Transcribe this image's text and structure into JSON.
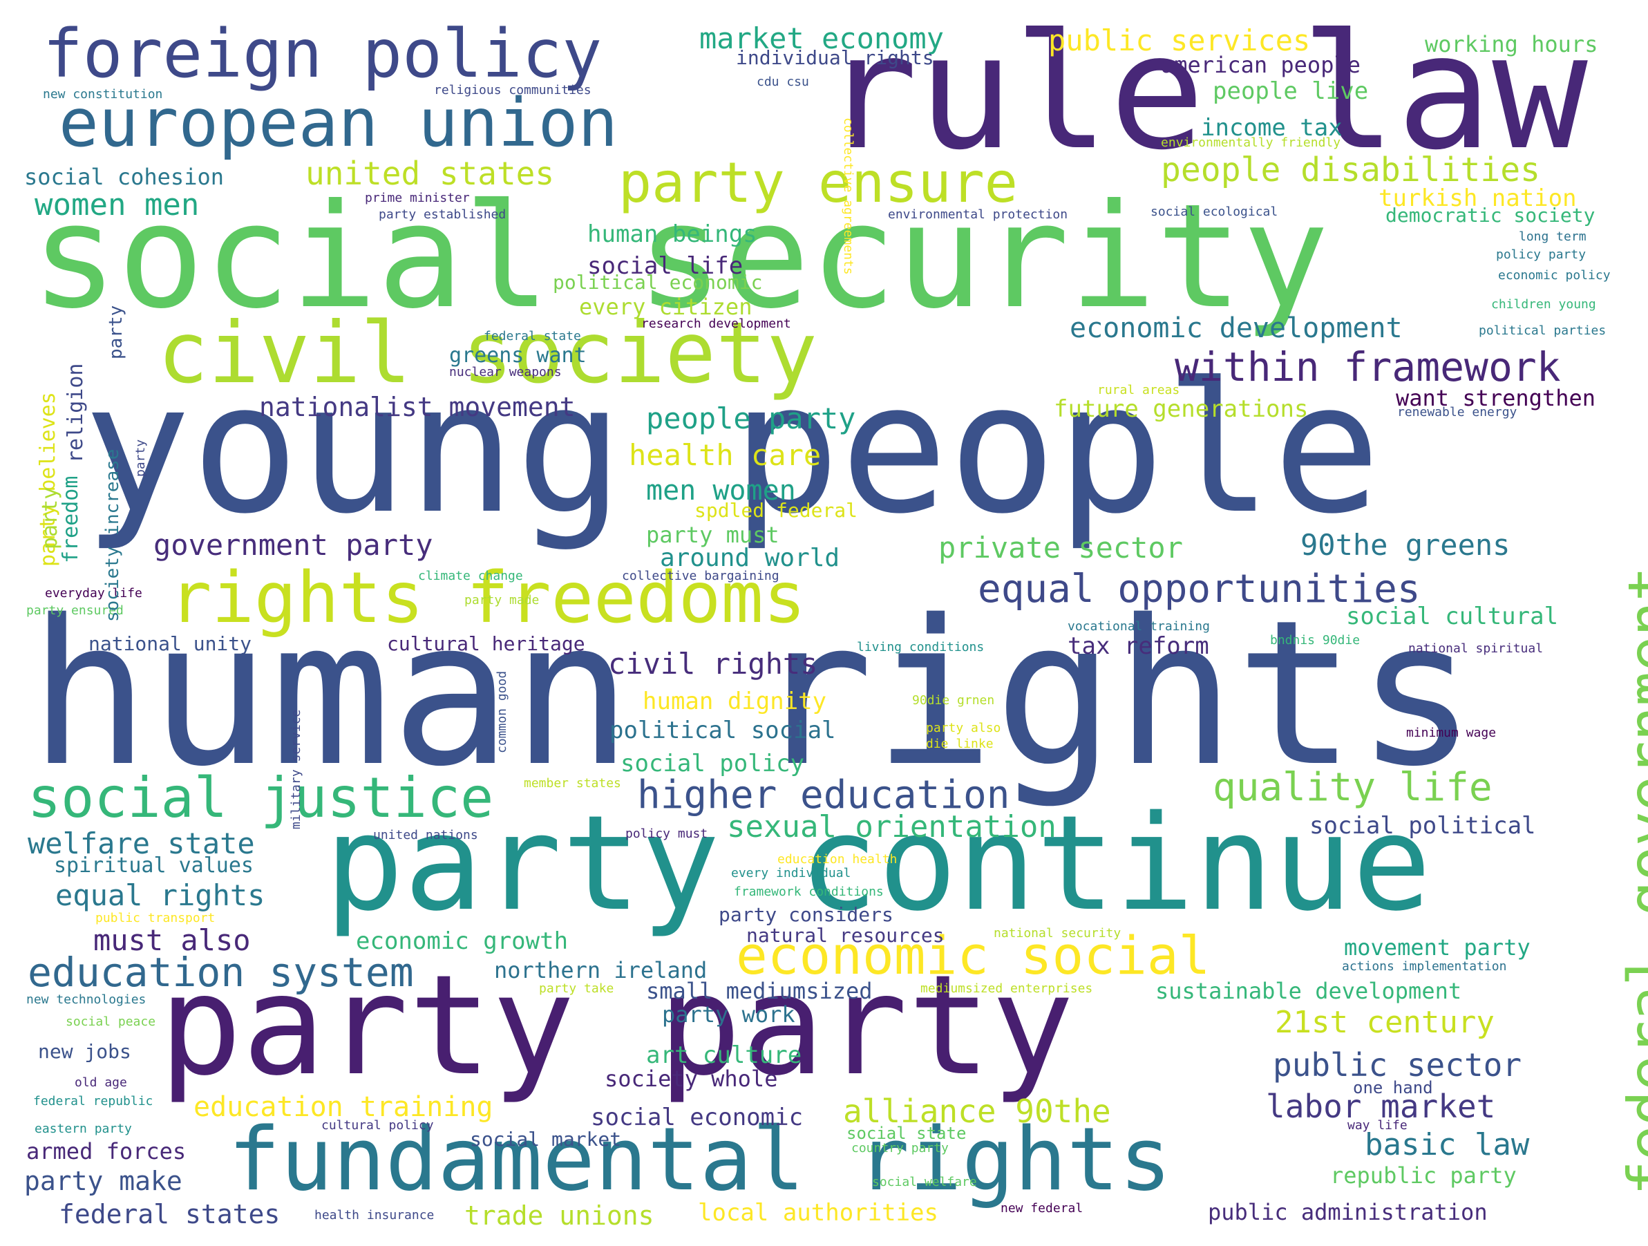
{
  "cloud": {
    "words": [
      {
        "text": "human rights",
        "color": "#3b528b"
      },
      {
        "text": "young people",
        "color": "#3b528b"
      },
      {
        "text": "social security",
        "color": "#5ec962"
      },
      {
        "text": "rule law",
        "color": "#482878"
      },
      {
        "text": "party continue",
        "color": "#21918c"
      },
      {
        "text": "party party",
        "color": "#481f70"
      },
      {
        "text": "fundamental rights",
        "color": "#2a788e"
      },
      {
        "text": "civil society",
        "color": "#addc30"
      },
      {
        "text": "rights freedoms",
        "color": "#c8e020"
      },
      {
        "text": "foreign policy",
        "color": "#3e4989"
      },
      {
        "text": "european union",
        "color": "#31688e"
      },
      {
        "text": "federal government",
        "color": "#7ad151"
      },
      {
        "text": "party ensure",
        "color": "#bddf26"
      },
      {
        "text": "social justice",
        "color": "#35b779"
      },
      {
        "text": "economic social",
        "color": "#fde725"
      },
      {
        "text": "education system",
        "color": "#31688e"
      },
      {
        "text": "equal opportunities",
        "color": "#3e4989"
      },
      {
        "text": "higher education",
        "color": "#3b528b"
      },
      {
        "text": "within framework",
        "color": "#482878"
      },
      {
        "text": "quality life",
        "color": "#7ad151"
      },
      {
        "text": "market economy",
        "color": "#22a884"
      },
      {
        "text": "public services",
        "color": "#fde725"
      },
      {
        "text": "working hours",
        "color": "#5ec962"
      },
      {
        "text": "individual rights",
        "color": "#3e4989"
      },
      {
        "text": "american people",
        "color": "#482878"
      },
      {
        "text": "people live",
        "color": "#5ec962"
      },
      {
        "text": "income tax",
        "color": "#21918c"
      },
      {
        "text": "united states",
        "color": "#bddf26"
      },
      {
        "text": "people disabilities",
        "color": "#b5de2b"
      },
      {
        "text": "social cohesion",
        "color": "#2a788e"
      },
      {
        "text": "women men",
        "color": "#22a884"
      },
      {
        "text": "turkish nation",
        "color": "#fde725"
      },
      {
        "text": "democratic society",
        "color": "#35b779"
      },
      {
        "text": "human beings",
        "color": "#35b779"
      },
      {
        "text": "social life",
        "color": "#482878"
      },
      {
        "text": "political economic",
        "color": "#7ad151"
      },
      {
        "text": "every citizen",
        "color": "#addc30"
      },
      {
        "text": "economic development",
        "color": "#2a788e"
      },
      {
        "text": "greens want",
        "color": "#2a788e"
      },
      {
        "text": "nationalist movement",
        "color": "#443983"
      },
      {
        "text": "future generations",
        "color": "#b5de2b"
      },
      {
        "text": "want strengthen",
        "color": "#440154"
      },
      {
        "text": "people party",
        "color": "#1fa187"
      },
      {
        "text": "health care",
        "color": "#dde318"
      },
      {
        "text": "men women",
        "color": "#1fa187"
      },
      {
        "text": "spdled federal",
        "color": "#dde318"
      },
      {
        "text": "party must",
        "color": "#5ec962"
      },
      {
        "text": "government party",
        "color": "#472d7b"
      },
      {
        "text": "private sector",
        "color": "#5ec962"
      },
      {
        "text": "90the greens",
        "color": "#2a788e"
      },
      {
        "text": "around world",
        "color": "#21918c"
      },
      {
        "text": "social cultural",
        "color": "#35b779"
      },
      {
        "text": "national unity",
        "color": "#3b528b"
      },
      {
        "text": "cultural heritage",
        "color": "#482878"
      },
      {
        "text": "tax reform",
        "color": "#472d7b"
      },
      {
        "text": "civil rights",
        "color": "#472d7b"
      },
      {
        "text": "human dignity",
        "color": "#fde725"
      },
      {
        "text": "political social",
        "color": "#2c728e"
      },
      {
        "text": "social policy",
        "color": "#35b779"
      },
      {
        "text": "welfare state",
        "color": "#2a788e"
      },
      {
        "text": "spiritual values",
        "color": "#2a788e"
      },
      {
        "text": "sexual orientation",
        "color": "#35b779"
      },
      {
        "text": "social political",
        "color": "#3e4989"
      },
      {
        "text": "equal rights",
        "color": "#2a788e"
      },
      {
        "text": "must also",
        "color": "#482878"
      },
      {
        "text": "economic growth",
        "color": "#35b779"
      },
      {
        "text": "party considers",
        "color": "#3e4989"
      },
      {
        "text": "natural resources",
        "color": "#443983"
      },
      {
        "text": "movement party",
        "color": "#22a884"
      },
      {
        "text": "northern ireland",
        "color": "#2c728e"
      },
      {
        "text": "small mediumsized",
        "color": "#3b528b"
      },
      {
        "text": "sustainable development",
        "color": "#35b779"
      },
      {
        "text": "party work",
        "color": "#2c728e"
      },
      {
        "text": "21st century",
        "color": "#c8e020"
      },
      {
        "text": "new jobs",
        "color": "#3b528b"
      },
      {
        "text": "art culture",
        "color": "#35b779"
      },
      {
        "text": "public sector",
        "color": "#3b528b"
      },
      {
        "text": "society whole",
        "color": "#482878"
      },
      {
        "text": "education training",
        "color": "#fde725"
      },
      {
        "text": "social economic",
        "color": "#443983"
      },
      {
        "text": "alliance 90the",
        "color": "#bddf26"
      },
      {
        "text": "labor market",
        "color": "#443983"
      },
      {
        "text": "social market",
        "color": "#3b528b"
      },
      {
        "text": "basic law",
        "color": "#2a788e"
      },
      {
        "text": "armed forces",
        "color": "#482878"
      },
      {
        "text": "party make",
        "color": "#3b528b"
      },
      {
        "text": "republic party",
        "color": "#5ec962"
      },
      {
        "text": "federal states",
        "color": "#3e4989"
      },
      {
        "text": "trade unions",
        "color": "#b5de2b"
      },
      {
        "text": "local authorities",
        "color": "#fde725"
      },
      {
        "text": "public administration",
        "color": "#472d7b"
      },
      {
        "text": "new constitution",
        "color": "#2a788e"
      },
      {
        "text": "religious communities",
        "color": "#3e4989"
      },
      {
        "text": "cdu csu",
        "color": "#3b528b"
      },
      {
        "text": "environmentally friendly",
        "color": "#b5de2b"
      },
      {
        "text": "prime minister",
        "color": "#482878"
      },
      {
        "text": "party established",
        "color": "#3e4989"
      },
      {
        "text": "environmental protection",
        "color": "#3e4989"
      },
      {
        "text": "social ecological",
        "color": "#3b528b"
      },
      {
        "text": "long term",
        "color": "#2c728e"
      },
      {
        "text": "policy party",
        "color": "#2a788e"
      },
      {
        "text": "economic policy",
        "color": "#2a788e"
      },
      {
        "text": "children young",
        "color": "#35b779"
      },
      {
        "text": "political parties",
        "color": "#2a788e"
      },
      {
        "text": "federal state",
        "color": "#2a788e"
      },
      {
        "text": "research development",
        "color": "#440154"
      },
      {
        "text": "nuclear weapons",
        "color": "#472d7b"
      },
      {
        "text": "rural areas",
        "color": "#c8e020"
      },
      {
        "text": "renewable energy",
        "color": "#3b528b"
      },
      {
        "text": "climate change",
        "color": "#35b779"
      },
      {
        "text": "collective bargaining",
        "color": "#3e4989"
      },
      {
        "text": "everyday life",
        "color": "#440154"
      },
      {
        "text": "party ensured",
        "color": "#5ec962"
      },
      {
        "text": "party made",
        "color": "#addc30"
      },
      {
        "text": "vocational training",
        "color": "#2a788e"
      },
      {
        "text": "living conditions",
        "color": "#21918c"
      },
      {
        "text": "bndnis 90die",
        "color": "#35b779"
      },
      {
        "text": "national spiritual",
        "color": "#472d7b"
      },
      {
        "text": "90die grnen",
        "color": "#b5de2b"
      },
      {
        "text": "party also",
        "color": "#dde318"
      },
      {
        "text": "die linke",
        "color": "#dde318"
      },
      {
        "text": "minimum wage",
        "color": "#440154"
      },
      {
        "text": "member states",
        "color": "#bddf26"
      },
      {
        "text": "united nations",
        "color": "#3e4989"
      },
      {
        "text": "policy must",
        "color": "#482878"
      },
      {
        "text": "education health",
        "color": "#fde725"
      },
      {
        "text": "every individual",
        "color": "#21918c"
      },
      {
        "text": "framework conditions",
        "color": "#35b779"
      },
      {
        "text": "public transport",
        "color": "#fde725"
      },
      {
        "text": "national security",
        "color": "#b5de2b"
      },
      {
        "text": "actions implementation",
        "color": "#2c728e"
      },
      {
        "text": "new technologies",
        "color": "#2a788e"
      },
      {
        "text": "party take",
        "color": "#bddf26"
      },
      {
        "text": "mediumsized enterprises",
        "color": "#bddf26"
      },
      {
        "text": "social peace",
        "color": "#7ad151"
      },
      {
        "text": "one hand",
        "color": "#3e4989"
      },
      {
        "text": "old age",
        "color": "#482878"
      },
      {
        "text": "federal republic",
        "color": "#21918c"
      },
      {
        "text": "eastern party",
        "color": "#21918c"
      },
      {
        "text": "cultural policy",
        "color": "#443983"
      },
      {
        "text": "social state",
        "color": "#5ec962"
      },
      {
        "text": "country party",
        "color": "#5ec962"
      },
      {
        "text": "way life",
        "color": "#482878"
      },
      {
        "text": "social welfare",
        "color": "#5ec962"
      },
      {
        "text": "health insurance",
        "color": "#3e4989"
      },
      {
        "text": "new federal",
        "color": "#440154"
      },
      {
        "text": "collective agreements",
        "color": "#fde725"
      },
      {
        "text": "party",
        "color": "#3b528b"
      },
      {
        "text": "society increase",
        "color": "#2a788e"
      },
      {
        "text": "party believes",
        "color": "#dde318"
      },
      {
        "text": "religion",
        "color": "#3e4989"
      },
      {
        "text": "freedom",
        "color": "#1fa187"
      },
      {
        "text": "party",
        "color": "#addc30"
      },
      {
        "text": "military service",
        "color": "#3e4989"
      },
      {
        "text": "common good",
        "color": "#3b528b"
      },
      {
        "text": "party",
        "color": "#3e4989"
      }
    ]
  }
}
